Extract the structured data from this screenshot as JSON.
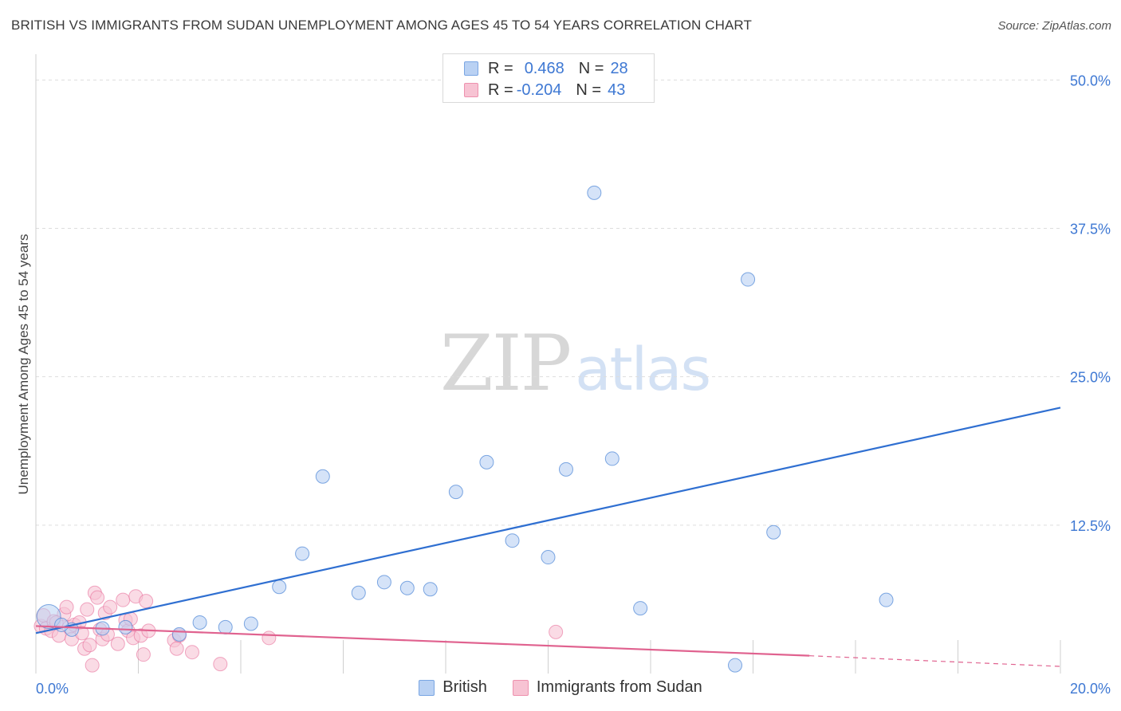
{
  "header": {
    "title": "BRITISH VS IMMIGRANTS FROM SUDAN UNEMPLOYMENT AMONG AGES 45 TO 54 YEARS CORRELATION CHART",
    "source": "Source: ZipAtlas.com"
  },
  "legend_top": {
    "rows": [
      {
        "r_label": "R =",
        "r_value": "0.468",
        "n_label": "N =",
        "n_value": "28"
      },
      {
        "r_label": "R =",
        "r_value": "-0.204",
        "n_label": "N =",
        "n_value": "43"
      }
    ]
  },
  "watermark": {
    "part1": "ZIP",
    "part2": "atlas"
  },
  "colors": {
    "british": "#4a84d6",
    "british_fill": "#b9d1f3",
    "sudan": "#e8709b",
    "sudan_fill": "#f7c3d3",
    "tick_label": "#3e78d3",
    "grid": "#dddddd"
  },
  "chart_data": {
    "type": "scatter",
    "title": "BRITISH VS IMMIGRANTS FROM SUDAN UNEMPLOYMENT AMONG AGES 45 TO 54 YEARS CORRELATION CHART",
    "xlabel": "",
    "ylabel": "Unemployment Among Ages 45 to 54 years",
    "xlim": [
      0,
      20
    ],
    "ylim": [
      0,
      51.5
    ],
    "x_tick_labels": [
      "0.0%",
      "20.0%"
    ],
    "y_ticks": [
      12.5,
      25.0,
      37.5,
      50.0
    ],
    "y_tick_labels": [
      "12.5%",
      "25.0%",
      "37.5%",
      "50.0%"
    ],
    "grid": true,
    "legend_position": "bottom-center",
    "series": [
      {
        "name": "British",
        "R": 0.468,
        "N": 28,
        "points": [
          [
            0.25,
            4.8
          ],
          [
            0.7,
            3.7
          ],
          [
            1.3,
            3.8
          ],
          [
            1.75,
            3.9
          ],
          [
            2.8,
            3.3
          ],
          [
            3.2,
            4.3
          ],
          [
            3.7,
            3.9
          ],
          [
            4.2,
            4.2
          ],
          [
            4.75,
            7.3
          ],
          [
            5.2,
            10.1
          ],
          [
            5.6,
            16.6
          ],
          [
            6.3,
            6.8
          ],
          [
            6.8,
            7.7
          ],
          [
            7.25,
            7.2
          ],
          [
            7.7,
            7.1
          ],
          [
            8.2,
            15.3
          ],
          [
            8.8,
            17.8
          ],
          [
            9.3,
            11.2
          ],
          [
            10.0,
            9.8
          ],
          [
            10.35,
            17.2
          ],
          [
            10.9,
            40.5
          ],
          [
            11.25,
            18.1
          ],
          [
            11.8,
            5.5
          ],
          [
            13.65,
            0.7
          ],
          [
            13.9,
            33.2
          ],
          [
            14.4,
            11.9
          ],
          [
            16.6,
            6.2
          ],
          [
            0.5,
            4.1
          ]
        ],
        "trend": {
          "x": [
            0,
            20
          ],
          "y": [
            3.4,
            22.4
          ]
        }
      },
      {
        "name": "Immigrants from Sudan",
        "R": -0.204,
        "N": 43,
        "points": [
          [
            0.1,
            4.0
          ],
          [
            0.15,
            4.9
          ],
          [
            0.2,
            3.8
          ],
          [
            0.3,
            3.6
          ],
          [
            0.35,
            4.4
          ],
          [
            0.45,
            3.2
          ],
          [
            0.55,
            5.0
          ],
          [
            0.6,
            5.6
          ],
          [
            0.65,
            3.9
          ],
          [
            0.7,
            2.9
          ],
          [
            0.75,
            4.1
          ],
          [
            0.85,
            4.3
          ],
          [
            0.9,
            3.4
          ],
          [
            0.95,
            2.1
          ],
          [
            1.0,
            5.4
          ],
          [
            1.05,
            2.4
          ],
          [
            1.1,
            0.7
          ],
          [
            1.15,
            6.8
          ],
          [
            1.2,
            6.4
          ],
          [
            1.25,
            3.7
          ],
          [
            1.3,
            2.9
          ],
          [
            1.35,
            5.1
          ],
          [
            1.4,
            3.3
          ],
          [
            1.45,
            5.6
          ],
          [
            1.6,
            2.5
          ],
          [
            1.7,
            6.2
          ],
          [
            1.75,
            4.5
          ],
          [
            1.8,
            3.6
          ],
          [
            1.85,
            4.6
          ],
          [
            1.9,
            3.0
          ],
          [
            1.95,
            6.5
          ],
          [
            2.05,
            3.2
          ],
          [
            2.1,
            1.6
          ],
          [
            2.15,
            6.1
          ],
          [
            2.2,
            3.6
          ],
          [
            2.7,
            2.8
          ],
          [
            2.75,
            2.1
          ],
          [
            2.8,
            3.2
          ],
          [
            3.05,
            1.8
          ],
          [
            3.6,
            0.8
          ],
          [
            4.55,
            3.0
          ],
          [
            10.15,
            3.5
          ],
          [
            0.4,
            4.3
          ]
        ],
        "trend": {
          "x": [
            0,
            15.1
          ],
          "y": [
            4.0,
            1.5
          ]
        },
        "trend_dashed": {
          "x": [
            15.1,
            20
          ],
          "y": [
            1.5,
            0.6
          ]
        }
      }
    ]
  },
  "bottom_legend": {
    "items": [
      "British",
      "Immigrants from Sudan"
    ]
  }
}
